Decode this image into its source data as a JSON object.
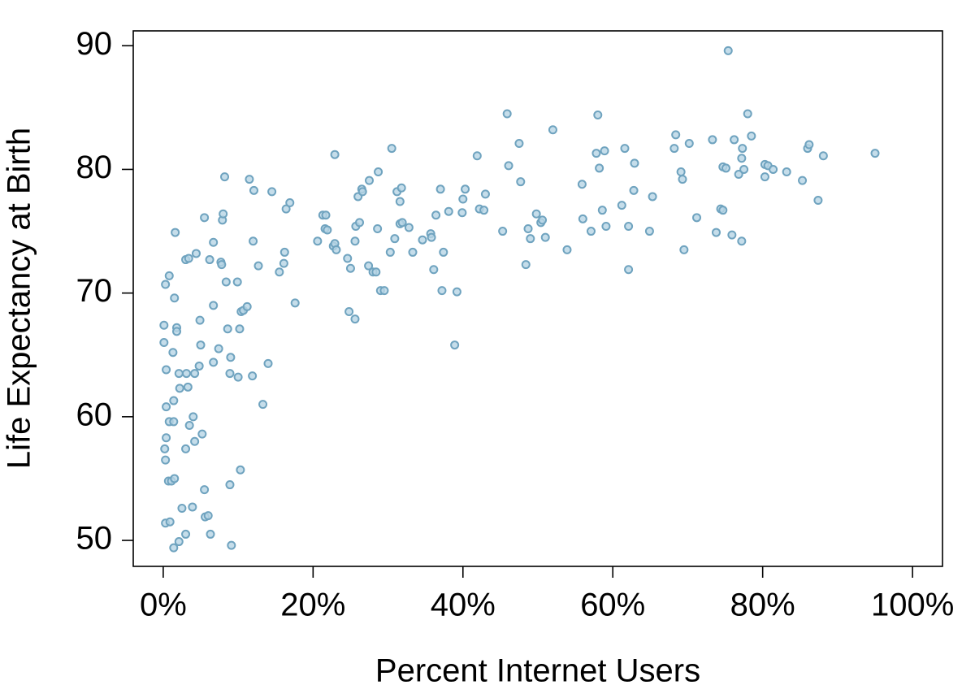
{
  "chart_data": {
    "type": "scatter",
    "x_label": "Percent Internet Users",
    "y_label": "Life Expectancy at Birth",
    "x": [
      0.1,
      0.1,
      0.3,
      0.8,
      0.4,
      0.4,
      0.8,
      0.4,
      0.2,
      0.3,
      0.7,
      1.1,
      1.5,
      0.3,
      0.9,
      1.4,
      2.1,
      1.5,
      1.6,
      1.3,
      1.4,
      1.4,
      1.8,
      1.8,
      2.1,
      2.2,
      2.5,
      3.0,
      3.0,
      3.4,
      3.1,
      3.3,
      3.0,
      3.5,
      4.0,
      3.9,
      4.2,
      4.4,
      4.2,
      4.8,
      4.9,
      5.0,
      5.2,
      5.5,
      5.5,
      5.6,
      6.0,
      6.3,
      6.2,
      6.7,
      6.7,
      6.7,
      7.4,
      7.7,
      7.8,
      7.9,
      8.0,
      8.2,
      8.4,
      8.6,
      8.9,
      8.9,
      9.1,
      9.0,
      9.9,
      10.0,
      10.2,
      10.3,
      10.4,
      10.7,
      11.2,
      11.5,
      11.9,
      12.0,
      12.1,
      12.7,
      13.3,
      14.0,
      14.5,
      15.5,
      16.2,
      16.1,
      16.4,
      16.9,
      17.6,
      20.6,
      21.3,
      21.7,
      21.6,
      21.9,
      22.7,
      22.9,
      23.1,
      22.9,
      24.6,
      25.0,
      24.8,
      25.6,
      25.6,
      25.7,
      26.2,
      26.0,
      26.5,
      26.6,
      27.5,
      27.4,
      28.0,
      28.4,
      28.6,
      28.7,
      29.0,
      29.5,
      30.3,
      30.5,
      30.9,
      31.2,
      31.6,
      31.6,
      31.8,
      31.9,
      32.8,
      33.3,
      34.6,
      35.7,
      35.8,
      36.1,
      36.4,
      37.0,
      37.2,
      37.4,
      38.1,
      38.9,
      39.2,
      39.9,
      40.0,
      40.3,
      41.9,
      42.2,
      42.8,
      43.0,
      45.3,
      45.9,
      46.1,
      47.5,
      47.7,
      48.4,
      48.7,
      49.0,
      49.8,
      50.4,
      50.6,
      51.0,
      52.0,
      53.9,
      55.9,
      56.0,
      57.1,
      57.8,
      58.0,
      58.2,
      58.6,
      58.9,
      59.1,
      61.2,
      61.6,
      62.1,
      62.1,
      62.8,
      62.9,
      64.9,
      65.3,
      68.2,
      68.4,
      69.1,
      69.3,
      69.5,
      70.2,
      71.2,
      73.3,
      73.8,
      74.4,
      74.7,
      74.7,
      75.1,
      75.4,
      75.9,
      76.2,
      76.8,
      77.2,
      77.2,
      77.3,
      77.5,
      78.0,
      78.5,
      80.3,
      80.7,
      81.4,
      80.3,
      83.2,
      85.3,
      86.0,
      86.2,
      87.4,
      88.1,
      95.0
    ],
    "values": [
      67.4,
      66.0,
      70.7,
      71.4,
      63.8,
      60.8,
      59.6,
      58.3,
      57.4,
      56.5,
      54.8,
      54.8,
      55.0,
      51.4,
      51.5,
      49.4,
      49.9,
      69.6,
      74.9,
      65.2,
      61.3,
      59.6,
      67.2,
      66.9,
      63.5,
      62.3,
      52.6,
      50.5,
      72.7,
      72.8,
      63.5,
      62.4,
      57.4,
      59.3,
      60.0,
      52.7,
      58.0,
      73.2,
      63.5,
      64.1,
      67.8,
      65.8,
      58.6,
      76.1,
      54.1,
      51.9,
      52.0,
      50.5,
      72.7,
      74.1,
      69.0,
      64.4,
      65.5,
      72.5,
      72.3,
      75.9,
      76.4,
      79.4,
      70.9,
      67.1,
      63.5,
      54.5,
      49.6,
      64.8,
      70.9,
      63.2,
      67.1,
      55.7,
      68.5,
      68.6,
      68.9,
      79.2,
      63.3,
      74.2,
      78.3,
      72.2,
      61.0,
      64.3,
      78.2,
      71.7,
      73.3,
      72.4,
      76.8,
      77.3,
      69.2,
      74.2,
      76.3,
      76.3,
      75.2,
      75.1,
      73.8,
      74.0,
      73.5,
      81.2,
      72.8,
      72.0,
      68.5,
      67.9,
      74.2,
      75.4,
      75.7,
      77.8,
      78.4,
      78.2,
      79.1,
      72.2,
      71.7,
      71.7,
      75.2,
      79.8,
      70.2,
      70.2,
      73.3,
      81.7,
      74.4,
      78.2,
      75.6,
      77.4,
      78.5,
      75.7,
      75.3,
      73.3,
      74.3,
      74.8,
      74.5,
      71.9,
      76.3,
      78.4,
      70.2,
      73.3,
      76.6,
      65.8,
      70.1,
      76.5,
      77.6,
      78.4,
      81.1,
      76.8,
      76.7,
      78.0,
      75.0,
      84.5,
      80.3,
      82.1,
      79.0,
      72.3,
      75.2,
      74.4,
      76.4,
      75.7,
      75.9,
      74.5,
      83.2,
      73.5,
      78.8,
      76.0,
      75.0,
      81.3,
      84.4,
      80.1,
      76.7,
      81.5,
      75.4,
      77.1,
      81.7,
      71.9,
      75.4,
      78.3,
      80.5,
      75.0,
      77.8,
      81.7,
      82.8,
      79.8,
      79.2,
      73.5,
      82.1,
      76.1,
      82.4,
      74.9,
      76.8,
      76.7,
      80.2,
      80.1,
      89.6,
      74.7,
      82.4,
      79.6,
      80.9,
      74.2,
      81.7,
      80.0,
      84.5,
      82.7,
      80.4,
      80.3,
      80.0,
      79.4,
      79.8,
      79.1,
      81.7,
      82.0,
      77.5,
      81.1,
      81.3
    ],
    "xlim": [
      -4.0,
      104.0
    ],
    "ylim": [
      47.9,
      91.2
    ],
    "xticks": [
      {
        "value": 0,
        "label": "0%"
      },
      {
        "value": 20,
        "label": "20%"
      },
      {
        "value": 40,
        "label": "40%"
      },
      {
        "value": 60,
        "label": "60%"
      },
      {
        "value": 80,
        "label": "80%"
      },
      {
        "value": 100,
        "label": "100%"
      }
    ],
    "yticks": [
      50,
      60,
      70,
      80,
      90
    ],
    "grid": false,
    "color": "#6fa3bf"
  }
}
